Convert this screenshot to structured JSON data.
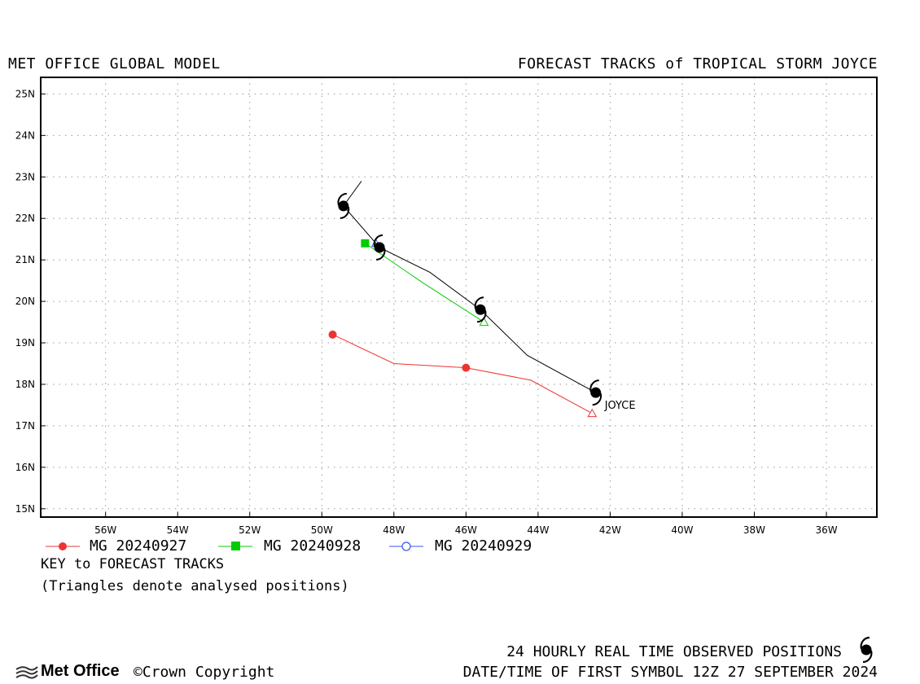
{
  "header": {
    "left": "MET OFFICE GLOBAL MODEL",
    "right": "FORECAST TRACKS of TROPICAL STORM JOYCE"
  },
  "chart_data": {
    "type": "line",
    "title": "FORECAST TRACKS of TROPICAL STORM JOYCE",
    "x_unit": "deg longitude",
    "y_unit": "deg latitude",
    "xlim": [
      -57.8,
      -34.6
    ],
    "ylim": [
      14.8,
      25.4
    ],
    "x_ticks": [
      -56,
      -54,
      -52,
      -50,
      -48,
      -46,
      -44,
      -42,
      -40,
      -38,
      -36
    ],
    "x_tick_labels": [
      "56W",
      "54W",
      "52W",
      "50W",
      "48W",
      "46W",
      "44W",
      "42W",
      "40W",
      "38W",
      "36W"
    ],
    "y_ticks": [
      15,
      16,
      17,
      18,
      19,
      20,
      21,
      22,
      23,
      24,
      25
    ],
    "y_tick_labels": [
      "15N",
      "16N",
      "17N",
      "18N",
      "19N",
      "20N",
      "21N",
      "22N",
      "23N",
      "24N",
      "25N"
    ],
    "grid": true,
    "observed_track": {
      "storm_label": "JOYCE",
      "color": "#000000",
      "line": [
        [
          -42.4,
          17.8
        ],
        [
          -44.3,
          18.7
        ],
        [
          -45.6,
          19.8
        ],
        [
          -47.0,
          20.7
        ],
        [
          -48.4,
          21.3
        ],
        [
          -49.4,
          22.3
        ],
        [
          -48.9,
          22.9
        ]
      ],
      "symbols": [
        [
          -42.4,
          17.8
        ],
        [
          -45.6,
          19.8
        ],
        [
          -48.4,
          21.3
        ],
        [
          -49.4,
          22.3
        ]
      ]
    },
    "series": [
      {
        "name": "MG 20240927",
        "color": "#ee3333",
        "marker": "circle-filled",
        "points": [
          [
            -42.5,
            17.3
          ],
          [
            -44.2,
            18.1
          ],
          [
            -46.0,
            18.4
          ],
          [
            -48.0,
            18.5
          ],
          [
            -49.7,
            19.2
          ]
        ],
        "analysed": [
          -42.5,
          17.3
        ],
        "markers": [
          [
            -46.0,
            18.4
          ],
          [
            -49.7,
            19.2
          ]
        ]
      },
      {
        "name": "MG 20240928",
        "color": "#00cc00",
        "marker": "square-filled",
        "points": [
          [
            -45.5,
            19.5
          ],
          [
            -47.2,
            20.45
          ],
          [
            -48.8,
            21.4
          ]
        ],
        "analysed": [
          -45.5,
          19.5
        ],
        "markers": [
          [
            -48.8,
            21.4
          ]
        ]
      },
      {
        "name": "MG 20240929",
        "color": "#3355ee",
        "marker": "circle-open",
        "points": [
          [
            -48.5,
            21.4
          ]
        ],
        "analysed": [
          -48.5,
          21.4
        ],
        "markers": []
      }
    ]
  },
  "legend": {
    "key_title": "KEY to FORECAST TRACKS",
    "key_note": "(Triangles denote analysed positions)"
  },
  "footer": {
    "observed_label": "24 HOURLY REAL TIME OBSERVED POSITIONS",
    "datetime": "DATE/TIME OF FIRST SYMBOL 12Z 27 SEPTEMBER 2024",
    "logo_text": "Met Office",
    "copyright": "©Crown Copyright"
  }
}
